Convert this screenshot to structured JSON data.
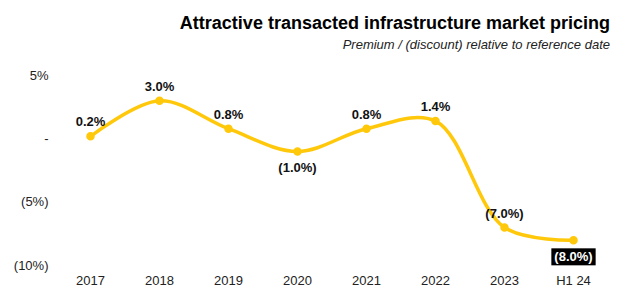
{
  "chart_data": {
    "type": "line",
    "title": "Attractive transacted infrastructure market pricing",
    "subtitle": "Premium / (discount) relative to reference date",
    "categories": [
      "2017",
      "2018",
      "2019",
      "2020",
      "2021",
      "2022",
      "2023",
      "H1 24"
    ],
    "values": [
      0.2,
      3.0,
      0.8,
      -1.0,
      0.8,
      1.4,
      -7.0,
      -8.0
    ],
    "value_labels": [
      "0.2%",
      "3.0%",
      "0.8%",
      "(1.0%)",
      "0.8%",
      "1.4%",
      "(7.0%)",
      "(8.0%)"
    ],
    "color": "#ffc80a",
    "marker": "circle",
    "ylim": [
      -10,
      5
    ],
    "yticks": [
      {
        "value": 5,
        "label": "5%"
      },
      {
        "value": 0,
        "label": "-"
      },
      {
        "value": -5,
        "label": "(5%)"
      },
      {
        "value": -10,
        "label": "(10%)"
      }
    ],
    "grid": false,
    "data_labels": true
  }
}
